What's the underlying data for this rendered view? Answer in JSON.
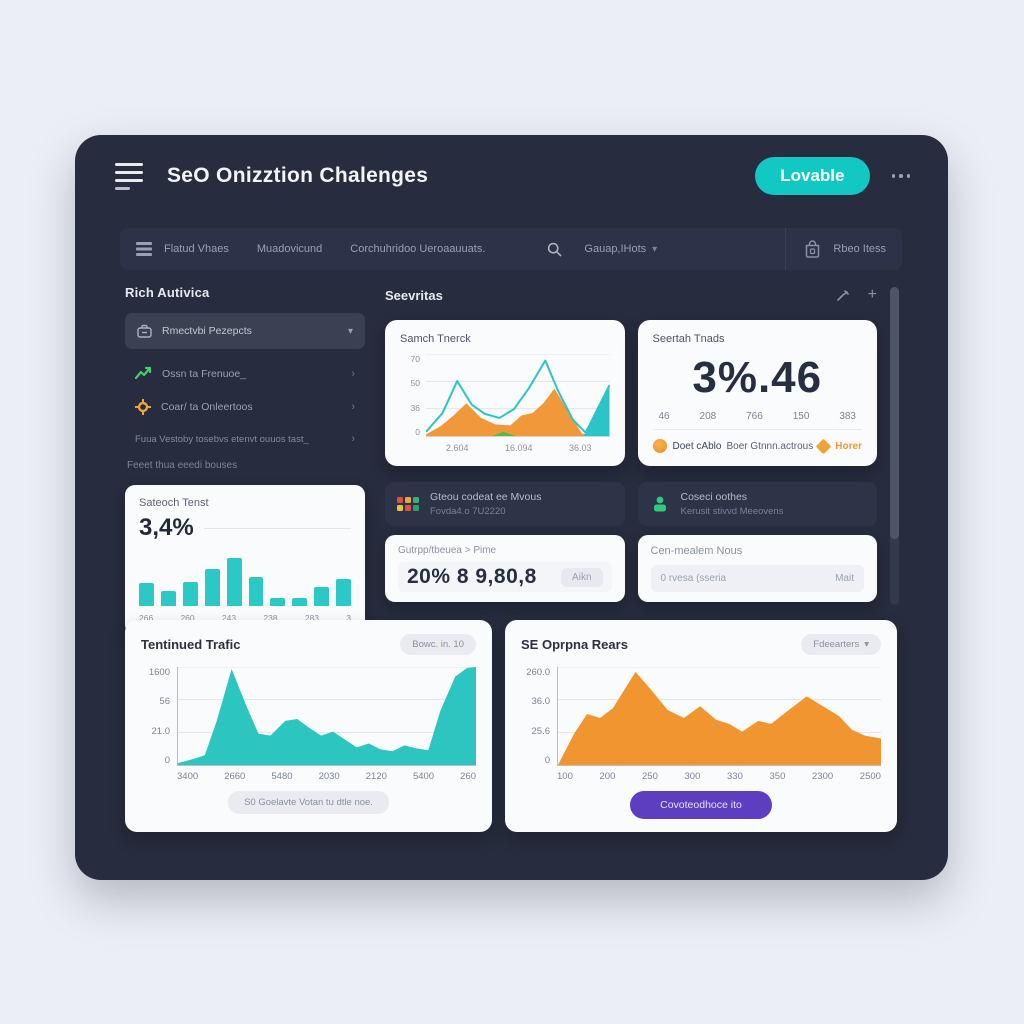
{
  "icons": {
    "chevron_down": "▾",
    "chevron_right": "›",
    "plus": "+"
  },
  "colors": {
    "accent_teal": "#12c8c2",
    "accent_orange": "#f0952f",
    "accent_purple": "#5b3fc0",
    "frame_bg": "#272c3e",
    "card_bg": "#fafbfd"
  },
  "header": {
    "title": "SeO Onizztion Chalenges",
    "action": "Lovable"
  },
  "nav": {
    "items": [
      {
        "label": "Flatud Vhaes"
      },
      {
        "label": "Muadovicund"
      },
      {
        "label": "Corchuhridoo Ueroaauuats."
      },
      {
        "label": "Gauap,IHots"
      }
    ],
    "right": "Rbeo Itess"
  },
  "sidebar": {
    "heading": "Rich Autivica",
    "dropdown": "Rmectvbi Pezepcts",
    "items": [
      {
        "label": "Ossn ta Frenuoe_"
      },
      {
        "label": "Coar/ ta Onleertoos"
      },
      {
        "label": "Fuua Vestoby tosebvs etenvt ouuos tast_"
      }
    ],
    "note": "Feeet thua eeedi bouses",
    "card": {
      "value": "3,4%"
    }
  },
  "main": {
    "heading": "Seevritas",
    "stat_card": {
      "title": "Seertah Tnads",
      "value": "3%.46",
      "ticks": [
        "46",
        "208",
        "766",
        "150",
        "383"
      ],
      "footer": {
        "left": "Doet cAblo",
        "middle": "Boer Gtnnn.actrous",
        "right": "Horer"
      }
    },
    "info_left": {
      "line1": "Gteou codeat ee Mvous",
      "line2": "Fovda4.o 7U2220"
    },
    "info_right": {
      "line1": "Coseci oothes",
      "line2": "Kerusit stivvd Meeovens"
    },
    "panel_left": {
      "label": "Gutrpp/tbeuea > Pime",
      "value": "20% 8 9,80,8",
      "action": "Aikn"
    },
    "panel_right": {
      "label": "Cen-mealem Nous",
      "input": "0 rvesa (sseria",
      "action": "Mait"
    }
  },
  "bottom": {
    "left": {
      "badge": "Bowc. in. 10",
      "footer": "S0 Goelavte Votan tu dtle noe."
    },
    "right": {
      "filter": "Fdeearters",
      "action": "Covoteodhoce ito"
    }
  },
  "chart_data": [
    {
      "type": "bar",
      "title": "Sateoch Tenst",
      "color": "#2bc8c5",
      "values": [
        38,
        25,
        40,
        62,
        80,
        48,
        14,
        13,
        32,
        45
      ],
      "xticks": [
        "266",
        "260",
        "243",
        "238",
        "283",
        "3"
      ],
      "ylim": [
        0,
        100
      ],
      "grid": false
    },
    {
      "type": "area",
      "title": "Samch Tnerck",
      "yticks": [
        "70",
        "50",
        "36",
        "0"
      ],
      "xticks": [
        "2.604",
        "16.094",
        "36.03"
      ],
      "ylim": [
        0,
        100
      ],
      "grid": true,
      "series": [
        {
          "name": "orange-area",
          "kind": "area",
          "color": "#f0983a",
          "points": [
            [
              0,
              2
            ],
            [
              8,
              12
            ],
            [
              15,
              25
            ],
            [
              22,
              40
            ],
            [
              30,
              22
            ],
            [
              38,
              14
            ],
            [
              46,
              13
            ],
            [
              52,
              25
            ],
            [
              58,
              28
            ],
            [
              64,
              40
            ],
            [
              70,
              58
            ],
            [
              78,
              28
            ],
            [
              85,
              3
            ],
            [
              88,
              2
            ]
          ]
        },
        {
          "name": "green-bump",
          "kind": "area",
          "color": "#58b947",
          "points": [
            [
              36,
              0
            ],
            [
              42,
              5
            ],
            [
              49,
              0
            ]
          ]
        },
        {
          "name": "teal-right-area",
          "kind": "area",
          "color": "#2cc4c6",
          "points": [
            [
              86,
              0
            ],
            [
              100,
              62
            ]
          ]
        },
        {
          "name": "teal-line",
          "kind": "line",
          "color": "#2cc4c6",
          "width": 2,
          "points": [
            [
              0,
              5
            ],
            [
              9,
              28
            ],
            [
              17,
              67
            ],
            [
              25,
              38
            ],
            [
              32,
              27
            ],
            [
              40,
              22
            ],
            [
              48,
              33
            ],
            [
              56,
              58
            ],
            [
              65,
              92
            ],
            [
              72,
              55
            ],
            [
              80,
              20
            ],
            [
              87,
              4
            ],
            [
              100,
              62
            ]
          ]
        }
      ]
    },
    {
      "type": "area",
      "title": "Tentinued Trafic",
      "yticks": [
        "1600",
        "56",
        "21.0",
        "0"
      ],
      "xticks": [
        "3400",
        "2660",
        "5480",
        "2030",
        "2120",
        "5400",
        "260"
      ],
      "ylim": [
        0,
        1600
      ],
      "grid": true,
      "series": [
        {
          "name": "traffic",
          "kind": "area",
          "color": "#2cc5c0",
          "points": [
            [
              0,
              2
            ],
            [
              5,
              6
            ],
            [
              9,
              10
            ],
            [
              13,
              45
            ],
            [
              18,
              98
            ],
            [
              23,
              60
            ],
            [
              27,
              32
            ],
            [
              31,
              30
            ],
            [
              36,
              45
            ],
            [
              40,
              47
            ],
            [
              44,
              38
            ],
            [
              48,
              30
            ],
            [
              52,
              34
            ],
            [
              56,
              26
            ],
            [
              60,
              18
            ],
            [
              64,
              22
            ],
            [
              68,
              16
            ],
            [
              72,
              14
            ],
            [
              76,
              20
            ],
            [
              80,
              17
            ],
            [
              84,
              15
            ],
            [
              88,
              55
            ],
            [
              93,
              90
            ],
            [
              97,
              99
            ],
            [
              100,
              100
            ]
          ]
        }
      ]
    },
    {
      "type": "area",
      "title": "SE Oprpna Rears",
      "yticks": [
        "260.0",
        "36.0",
        "25.6",
        "0"
      ],
      "xticks": [
        "100",
        "200",
        "250",
        "300",
        "330",
        "350",
        "2300",
        "2500"
      ],
      "ylim": [
        0,
        260
      ],
      "grid": true,
      "series": [
        {
          "name": "rears",
          "kind": "area",
          "color": "#f0952f",
          "points": [
            [
              0,
              0
            ],
            [
              5,
              32
            ],
            [
              9,
              52
            ],
            [
              13,
              48
            ],
            [
              17,
              58
            ],
            [
              24,
              95
            ],
            [
              29,
              76
            ],
            [
              34,
              56
            ],
            [
              39,
              48
            ],
            [
              44,
              60
            ],
            [
              49,
              46
            ],
            [
              53,
              42
            ],
            [
              57,
              34
            ],
            [
              62,
              45
            ],
            [
              66,
              42
            ],
            [
              71,
              55
            ],
            [
              77,
              70
            ],
            [
              81,
              62
            ],
            [
              87,
              50
            ],
            [
              91,
              36
            ],
            [
              95,
              30
            ],
            [
              100,
              27
            ]
          ]
        }
      ]
    }
  ]
}
